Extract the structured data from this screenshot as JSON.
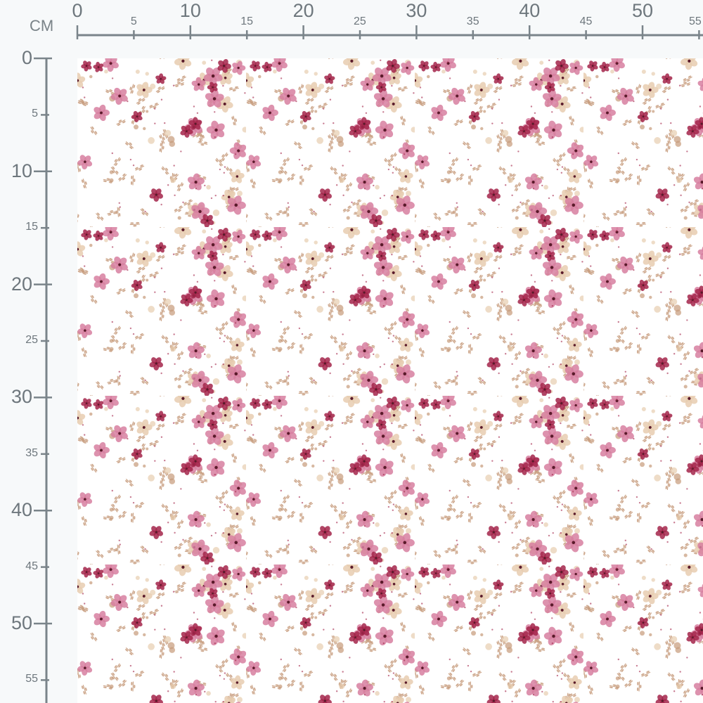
{
  "ruler": {
    "unit": "CM",
    "top_labels": [
      "0",
      "5",
      "10",
      "15",
      "20",
      "25",
      "30",
      "35",
      "40",
      "45",
      "50",
      "55"
    ],
    "left_labels": [
      "0",
      "5",
      "10",
      "15",
      "20",
      "25",
      "30",
      "35",
      "40",
      "45",
      "50",
      "55"
    ],
    "color": "#7a848a"
  },
  "fabric": {
    "pattern": "ditsy floral",
    "colors": {
      "background": "#ffffff",
      "pink": "#d77fa0",
      "crimson": "#a3244a",
      "beige": "#e8cdb0",
      "leaf": "#c69a7a"
    }
  }
}
